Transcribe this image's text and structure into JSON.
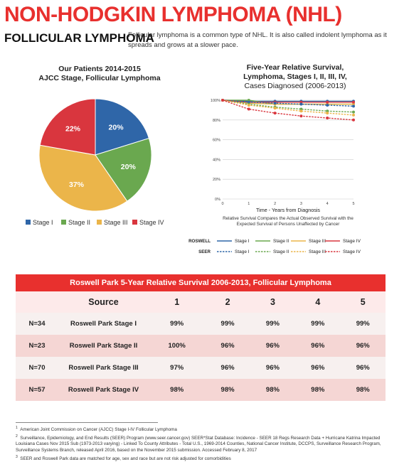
{
  "header": {
    "title": "NON-HODGKIN LYMPHOMA (NHL)",
    "subtitle": "FOLLICULAR LYMPHOMA",
    "intro": "Follicular lymphoma is a common type of NHL. It is also called indolent lymphoma as it spreads and grows at a slower pace."
  },
  "pie": {
    "title_line1": "Our Patients  2014-2015",
    "title_line2": "AJCC Stage, Follicular Lymphoma",
    "legend": [
      "Stage I",
      "Stage II",
      "Stage III",
      "Stage IV"
    ]
  },
  "line": {
    "title_line1": "Five-Year Relative Survival,",
    "title_line2": "Lymphoma, Stages I, II, III, IV,",
    "title_line3": "Cases Diagnosed (2006-2013)",
    "xlabel": "Time - Years from Diagnosis",
    "note_line1": "Relative Survival Compares the Actual Observed Survival with the",
    "note_line2": "Expected Survival of Persons Unaffected by Cancer",
    "legend_roswell": "ROSWELL",
    "legend_seer": "SEER",
    "stage_labels": [
      "Stage I",
      "Stage II",
      "Stage III",
      "Stage IV"
    ]
  },
  "table": {
    "banner": "Roswell Park 5-Year Relative Survival 2006-2013, Follicular Lymphoma",
    "headers": [
      "Source",
      "1",
      "2",
      "3",
      "4",
      "5"
    ],
    "rows": [
      {
        "n": "N=34",
        "source": "Roswell Park Stage I",
        "vals": [
          "99%",
          "99%",
          "99%",
          "99%",
          "99%"
        ]
      },
      {
        "n": "N=23",
        "source": "Roswell Park Stage II",
        "vals": [
          "100%",
          "96%",
          "96%",
          "96%",
          "96%"
        ]
      },
      {
        "n": "N=70",
        "source": "Roswell Park Stage III",
        "vals": [
          "97%",
          "96%",
          "96%",
          "96%",
          "96%"
        ]
      },
      {
        "n": "N=57",
        "source": "Roswell Park Stage IV",
        "vals": [
          "98%",
          "98%",
          "98%",
          "98%",
          "98%"
        ]
      }
    ]
  },
  "footnotes": [
    {
      "num": "1",
      "text": "American Joint Commission on Cancer (AJCC) Stage I-IV Follicular Lymphoma"
    },
    {
      "num": "2",
      "text": "Surveillance, Epidemiology, and End Results (SEER) Program (www.seer.cancer.gov) SEER*Stat Database: Incidence - SEER 18 Regs Research Data + Hurricane Katrina Impacted Louisiana Cases Nov 2015 Sub (1973-2013 varying) - Linked To County Attributes - Total U.S., 1969-2014 Counties, National Cancer Institute, DCCPS, Surveillance Research Program, Surveillance Systems Branch, released April 2016, based on the November 2015 submission. Accessed February 8, 2017"
    },
    {
      "num": "3",
      "text": "SEER and Roswell Park data are matched for age, sex and race but are not risk adjusted for comorbidities"
    }
  ],
  "colors": {
    "accent": "#e8302e",
    "stage1": "#2f66a8",
    "stage2": "#6aa84f",
    "stage3": "#ebb54a",
    "stage4": "#d9363e"
  },
  "chart_data": [
    {
      "type": "pie",
      "title": "Our Patients 2014-2015 AJCC Stage, Follicular Lymphoma",
      "categories": [
        "Stage I",
        "Stage II",
        "Stage III",
        "Stage IV"
      ],
      "values": [
        20,
        20,
        37,
        22
      ],
      "labels": [
        "20%",
        "20%",
        "37%",
        "22%"
      ],
      "legend_position": "bottom"
    },
    {
      "type": "line",
      "title": "Five-Year Relative Survival, Lymphoma, Stages I, II, III, IV, Cases Diagnosed (2006-2013)",
      "xlabel": "Time - Years from Diagnosis",
      "ylabel": "",
      "x": [
        0,
        1,
        2,
        3,
        4,
        5
      ],
      "xlim": [
        0,
        5
      ],
      "ylim": [
        0,
        100
      ],
      "yticks": [
        "0%",
        "20%",
        "40%",
        "60%",
        "80%",
        "100%"
      ],
      "grid": "horizontal",
      "legend_position": "bottom",
      "series": [
        {
          "name": "ROSWELL Stage I",
          "style": "solid",
          "color": "#2f66a8",
          "values": [
            100,
            99,
            99,
            99,
            99,
            99
          ]
        },
        {
          "name": "ROSWELL Stage II",
          "style": "solid",
          "color": "#6aa84f",
          "values": [
            100,
            100,
            96,
            96,
            96,
            96
          ]
        },
        {
          "name": "ROSWELL Stage III",
          "style": "solid",
          "color": "#ebb54a",
          "values": [
            100,
            97,
            96,
            96,
            96,
            96
          ]
        },
        {
          "name": "ROSWELL Stage IV",
          "style": "solid",
          "color": "#d9363e",
          "values": [
            100,
            98,
            98,
            98,
            98,
            98
          ]
        },
        {
          "name": "SEER Stage I",
          "style": "dashed",
          "color": "#2f66a8",
          "values": [
            100,
            98,
            97,
            96,
            95,
            94
          ]
        },
        {
          "name": "SEER Stage II",
          "style": "dashed",
          "color": "#6aa84f",
          "values": [
            100,
            96,
            93,
            91,
            89,
            88
          ]
        },
        {
          "name": "SEER Stage III",
          "style": "dashed",
          "color": "#ebb54a",
          "values": [
            100,
            95,
            92,
            89,
            87,
            85
          ]
        },
        {
          "name": "SEER Stage IV",
          "style": "dashed",
          "color": "#d9363e",
          "values": [
            100,
            91,
            87,
            84,
            82,
            80
          ]
        }
      ]
    }
  ]
}
